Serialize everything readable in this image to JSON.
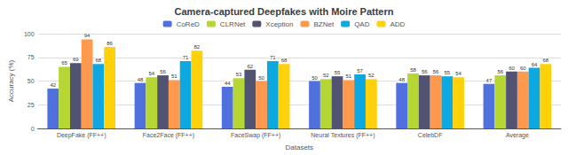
{
  "chart_data": {
    "type": "bar",
    "title": "Camera-captured Deepfakes with Moire Pattern",
    "xlabel": "Datasets",
    "ylabel": "Accuracy (%)",
    "categories": [
      "DeepFake (FF++)",
      "Face2Face (FF++)",
      "FaceSwap (FF++)",
      "Neural Textures (FF++)",
      "CelebDF",
      "Average"
    ],
    "series": [
      {
        "name": "CoReD",
        "values": [
          42,
          48,
          44,
          50,
          48,
          47
        ]
      },
      {
        "name": "CLRNet",
        "values": [
          65,
          54,
          53,
          52,
          58,
          56
        ]
      },
      {
        "name": "Xception",
        "values": [
          69,
          56,
          62,
          55,
          56,
          60
        ]
      },
      {
        "name": "BZNet",
        "values": [
          94,
          51,
          50,
          51,
          56,
          60
        ]
      },
      {
        "name": "QAD",
        "values": [
          68,
          71,
          71,
          57,
          55,
          64
        ]
      },
      {
        "name": "ADD",
        "values": [
          86,
          82,
          68,
          52,
          54,
          68
        ]
      }
    ],
    "ylim": [
      0,
      100
    ],
    "yticks": [
      0,
      25,
      50,
      75,
      100
    ],
    "grid": true,
    "legend": "top",
    "data_labels": true
  }
}
